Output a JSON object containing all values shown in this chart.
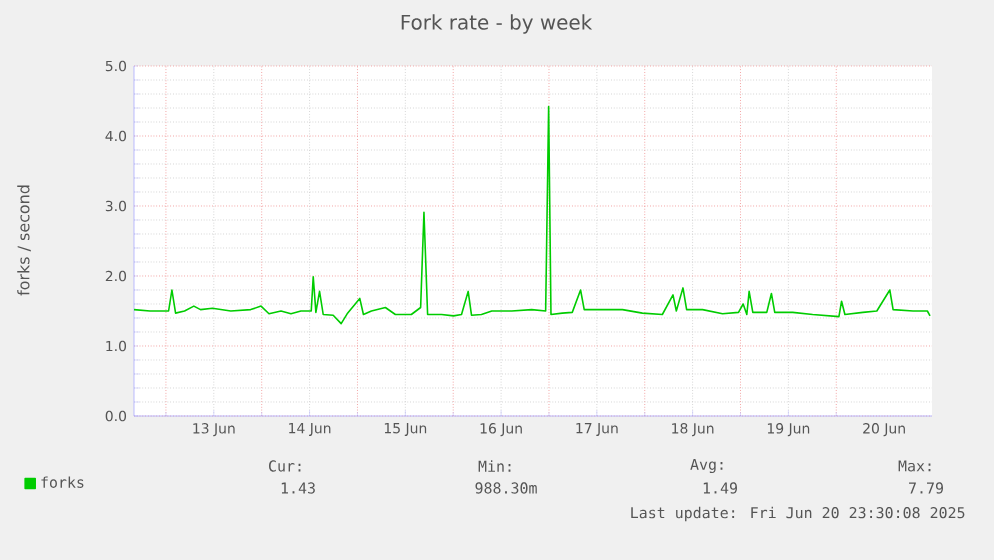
{
  "chart_data": {
    "type": "line",
    "title": "Fork rate - by week",
    "ylabel": "forks / second",
    "xlim": [
      "2025-06-12T16:00",
      "2025-06-21T00:00"
    ],
    "xticks": [
      {
        "value": "2025-06-13T00:00",
        "label": null
      },
      {
        "value": "2025-06-13T12:00",
        "label": "13 Jun"
      },
      {
        "value": "2025-06-14T00:00",
        "label": null
      },
      {
        "value": "2025-06-14T12:00",
        "label": "14 Jun"
      },
      {
        "value": "2025-06-15T00:00",
        "label": null
      },
      {
        "value": "2025-06-15T12:00",
        "label": "15 Jun"
      },
      {
        "value": "2025-06-16T00:00",
        "label": null
      },
      {
        "value": "2025-06-16T12:00",
        "label": "16 Jun"
      },
      {
        "value": "2025-06-17T00:00",
        "label": null
      },
      {
        "value": "2025-06-17T12:00",
        "label": "17 Jun"
      },
      {
        "value": "2025-06-18T00:00",
        "label": null
      },
      {
        "value": "2025-06-18T12:00",
        "label": "18 Jun"
      },
      {
        "value": "2025-06-19T00:00",
        "label": null
      },
      {
        "value": "2025-06-19T12:00",
        "label": "19 Jun"
      },
      {
        "value": "2025-06-20T00:00",
        "label": null
      },
      {
        "value": "2025-06-20T12:00",
        "label": "20 Jun"
      }
    ],
    "ylim": [
      0,
      5
    ],
    "yticks": [
      {
        "value": 0,
        "label": "0.0"
      },
      {
        "value": 1,
        "label": "1.0"
      },
      {
        "value": 2,
        "label": "2.0"
      },
      {
        "value": 3,
        "label": "3.0"
      },
      {
        "value": 4,
        "label": "4.0"
      },
      {
        "value": 5,
        "label": "5.0"
      }
    ],
    "grid": true,
    "legend": "bottom",
    "marker": "none",
    "line_style": "solid",
    "x": [
      "2025-06-12T16:00",
      "2025-06-12T20:00",
      "2025-06-13T00:40",
      "2025-06-13T01:30",
      "2025-06-13T02:25",
      "2025-06-13T04:40",
      "2025-06-13T07:00",
      "2025-06-13T08:40",
      "2025-06-13T11:40",
      "2025-06-13T16:15",
      "2025-06-13T21:15",
      "2025-06-13T23:50",
      "2025-06-14T01:50",
      "2025-06-14T04:50",
      "2025-06-14T07:20",
      "2025-06-14T09:50",
      "2025-06-14T12:25",
      "2025-06-14T12:55",
      "2025-06-14T13:35",
      "2025-06-14T14:30",
      "2025-06-14T15:25",
      "2025-06-14T17:55",
      "2025-06-14T19:55",
      "2025-06-14T21:25",
      "2025-06-15T00:35",
      "2025-06-15T01:30",
      "2025-06-15T03:30",
      "2025-06-15T07:00",
      "2025-06-15T09:30",
      "2025-06-15T13:30",
      "2025-06-15T15:50",
      "2025-06-15T16:40",
      "2025-06-15T17:35",
      "2025-06-15T21:05",
      "2025-06-16T00:05",
      "2025-06-16T02:05",
      "2025-06-16T03:45",
      "2025-06-16T04:35",
      "2025-06-16T07:05",
      "2025-06-16T09:40",
      "2025-06-16T14:40",
      "2025-06-16T19:40",
      "2025-06-16T23:10",
      "2025-06-16T23:55",
      "2025-06-17T00:30",
      "2025-06-17T03:20",
      "2025-06-17T05:50",
      "2025-06-17T07:55",
      "2025-06-17T08:50",
      "2025-06-17T13:20",
      "2025-06-17T18:25",
      "2025-06-17T23:25",
      "2025-06-18T04:25",
      "2025-06-18T07:05",
      "2025-06-18T07:55",
      "2025-06-18T09:35",
      "2025-06-18T10:30",
      "2025-06-18T14:30",
      "2025-06-18T19:30",
      "2025-06-18T23:30",
      "2025-06-19T00:40",
      "2025-06-19T01:35",
      "2025-06-19T02:10",
      "2025-06-19T03:05",
      "2025-06-19T06:35",
      "2025-06-19T07:45",
      "2025-06-19T08:35",
      "2025-06-19T13:05",
      "2025-06-19T18:05",
      "2025-06-20T00:40",
      "2025-06-20T01:20",
      "2025-06-20T02:10",
      "2025-06-20T06:40",
      "2025-06-20T10:10",
      "2025-06-20T13:25",
      "2025-06-20T14:15",
      "2025-06-20T19:15",
      "2025-06-20T22:50",
      "2025-06-20T23:30"
    ],
    "series": [
      {
        "name": "forks",
        "color": "#00cc00",
        "values": [
          1.52,
          1.5,
          1.5,
          1.8,
          1.47,
          1.5,
          1.57,
          1.52,
          1.54,
          1.5,
          1.52,
          1.57,
          1.46,
          1.5,
          1.46,
          1.5,
          1.5,
          1.99,
          1.48,
          1.78,
          1.45,
          1.44,
          1.32,
          1.46,
          1.68,
          1.45,
          1.5,
          1.55,
          1.45,
          1.45,
          1.55,
          2.91,
          1.45,
          1.45,
          1.43,
          1.45,
          1.78,
          1.44,
          1.45,
          1.5,
          1.5,
          1.52,
          1.5,
          4.42,
          1.45,
          1.47,
          1.48,
          1.8,
          1.52,
          1.52,
          1.52,
          1.47,
          1.45,
          1.73,
          1.5,
          1.83,
          1.52,
          1.52,
          1.46,
          1.48,
          1.6,
          1.45,
          1.78,
          1.48,
          1.48,
          1.75,
          1.48,
          1.48,
          1.45,
          1.42,
          1.64,
          1.45,
          1.48,
          1.5,
          1.8,
          1.52,
          1.5,
          1.5,
          1.43
        ]
      }
    ],
    "annotations": [
      "Cur:",
      "1.43",
      "Min:",
      "988.30m",
      "Avg:",
      "1.49",
      "Max:",
      "7.79",
      "Last update: Fri Jun 20 23:30:08 2025"
    ]
  }
}
